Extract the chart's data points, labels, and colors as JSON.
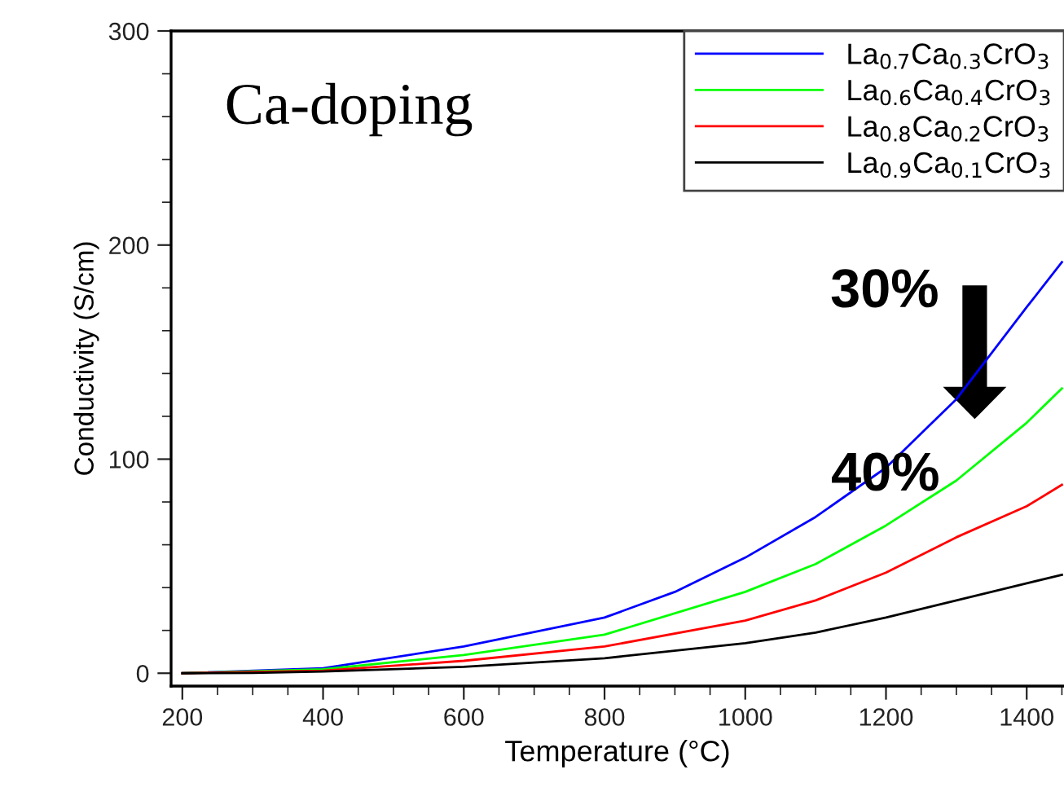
{
  "chart_data": {
    "type": "line",
    "xlabel": "Temperature (°C)",
    "ylabel": "Conductivity (S/cm)",
    "xlim": [
      184,
      1453
    ],
    "ylim": [
      -6,
      300
    ],
    "xticks": [
      200,
      400,
      600,
      800,
      1000,
      1200,
      1400
    ],
    "yticks": [
      0,
      100,
      200,
      300
    ],
    "grid": false,
    "legend": "top right",
    "marker": "none",
    "line_style": "solid",
    "annotations": [
      "Ca-doping",
      "30%",
      "40%"
    ],
    "series": [
      {
        "name": "La$_{0.7}$Ca$_{0.3}$CrO$_{3}$",
        "color": "#0000ff",
        "x": [
          200,
          400,
          600,
          800,
          900,
          1000,
          1100,
          1200,
          1300,
          1400,
          1450
        ],
        "values": [
          0,
          2.3,
          12.5,
          26,
          38,
          54,
          73,
          96,
          128,
          171,
          192
        ]
      },
      {
        "name": "La$_{0.6}$Ca$_{0.4}$CrO$_{3}$",
        "color": "#00ff00",
        "x": [
          200,
          400,
          600,
          800,
          1000,
          1100,
          1200,
          1300,
          1400,
          1450
        ],
        "values": [
          0,
          1.8,
          8.5,
          18,
          38,
          51,
          69,
          90,
          117,
          133
        ]
      },
      {
        "name": "La$_{0.8}$Ca$_{0.2}$CrO$_{3}$",
        "color": "#ff0000",
        "x": [
          200,
          400,
          600,
          800,
          1000,
          1100,
          1200,
          1300,
          1400,
          1450
        ],
        "values": [
          0,
          1.2,
          5.8,
          12.5,
          24.6,
          34,
          47,
          63.5,
          78,
          88
        ]
      },
      {
        "name": "La$_{0.9}$Ca$_{0.1}$CrO$_{3}$",
        "color": "#000000",
        "x": [
          200,
          300,
          400,
          600,
          800,
          1000,
          1100,
          1200,
          1300,
          1400,
          1450
        ],
        "values": [
          0,
          0.1,
          0.8,
          3,
          7,
          14,
          19,
          26,
          34,
          42,
          46
        ]
      }
    ]
  }
}
